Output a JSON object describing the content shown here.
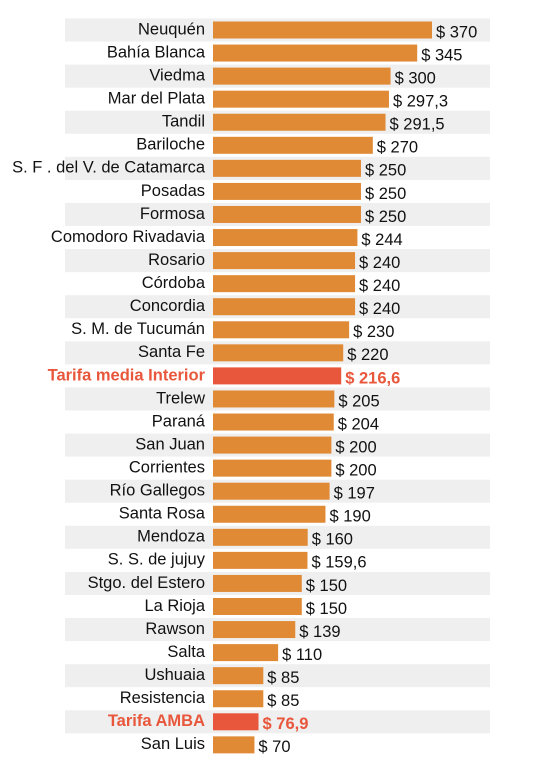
{
  "chart_data": {
    "type": "bar",
    "orientation": "horizontal",
    "categories": [
      "Neuquén",
      "Bahía Blanca",
      "Viedma",
      "Mar del Plata",
      "Tandil",
      "Bariloche",
      "S. F . del V. de Catamarca",
      "Posadas",
      "Formosa",
      "Comodoro Rivadavia",
      "Rosario",
      "Córdoba",
      "Concordia",
      "S. M. de Tucumán",
      "Santa Fe",
      "Tarifa media Interior",
      "Trelew",
      "Paraná",
      "San Juan",
      "Corrientes",
      "Río Gallegos",
      "Santa Rosa",
      "Mendoza",
      "S. S. de jujuy",
      "Stgo. del Estero",
      "La Rioja",
      "Rawson",
      "Salta",
      "Ushuaia",
      "Resistencia",
      "Tarifa AMBA",
      "San Luis"
    ],
    "values": [
      370,
      345,
      300,
      297.3,
      291.5,
      270,
      250,
      250,
      250,
      244,
      240,
      240,
      240,
      230,
      220,
      216.6,
      205,
      204,
      200,
      200,
      197,
      190,
      160,
      159.6,
      150,
      150,
      139,
      110,
      85,
      85,
      76.9,
      70
    ],
    "value_labels": [
      "$ 370",
      "$ 345",
      "$ 300",
      "$ 297,3",
      "$ 291,5",
      "$ 270",
      "$ 250",
      "$ 250",
      "$ 250",
      "$ 244",
      "$ 240",
      "$ 240",
      "$ 240",
      "$ 230",
      "$ 220",
      "$ 216,6",
      "$ 205",
      "$ 204",
      "$ 200",
      "$ 200",
      "$ 197",
      "$ 190",
      "$ 160",
      "$ 159,6",
      "$ 150",
      "$ 150",
      "$ 139",
      "$ 110",
      "$ 85",
      "$ 85",
      "$ 76,9",
      "$ 70"
    ],
    "color": "#e08a36",
    "colors": [
      "#e08a36",
      "#e08a36",
      "#e08a36",
      "#e08a36",
      "#e08a36",
      "#e08a36",
      "#e08a36",
      "#e08a36",
      "#e08a36",
      "#e08a36",
      "#e08a36",
      "#e08a36",
      "#e08a36",
      "#e08a36",
      "#e08a36",
      "#e8573b",
      "#e08a36",
      "#e08a36",
      "#e08a36",
      "#e08a36",
      "#e08a36",
      "#e08a36",
      "#e08a36",
      "#e08a36",
      "#e08a36",
      "#e08a36",
      "#e08a36",
      "#e08a36",
      "#e08a36",
      "#e08a36",
      "#e8573b",
      "#e08a36"
    ]
  }
}
